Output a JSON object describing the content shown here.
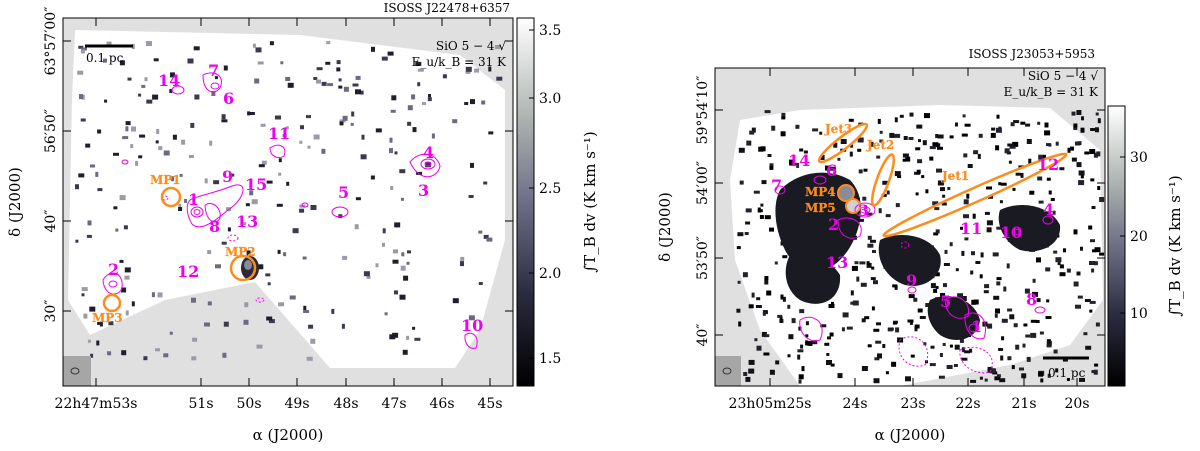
{
  "panels": [
    {
      "id": "left",
      "title": "ISOSS J22478+6357",
      "line_label": "SiO 5 − 4 √",
      "energy_label": "E_u/k_B = 31 K",
      "scalebar_label": "0.1 pc",
      "ra_ticks": [
        "22h47m53s",
        "51s",
        "50s",
        "49s",
        "48s",
        "47s",
        "46s",
        "45s"
      ],
      "dec_ticks": [
        "63°57′00″",
        "56′50″",
        "40″",
        "30″"
      ],
      "x_label": "α (J2000)",
      "y_label": "δ (J2000)",
      "colorbar_label": "∫T_B dv (K km s⁻¹)",
      "colorbar_ticks": [
        "3.5",
        "3.0",
        "2.5",
        "2.0",
        "1.5"
      ],
      "cores": [
        "1",
        "2",
        "3",
        "4",
        "5",
        "6",
        "7",
        "8",
        "9",
        "10",
        "11",
        "12",
        "13",
        "14",
        "15"
      ],
      "protostars": [
        "MP1",
        "MP2",
        "MP3"
      ]
    },
    {
      "id": "right",
      "title": "ISOSS J23053+5953",
      "line_label": "SiO 5 − 4 √",
      "energy_label": "E_u/k_B = 31 K",
      "scalebar_label": "0.1 pc",
      "ra_ticks": [
        "23h05m25s",
        "24s",
        "23s",
        "22s",
        "21s",
        "20s"
      ],
      "dec_ticks": [
        "59°54′10″",
        "54′00″",
        "53′50″",
        "40″"
      ],
      "x_label": "α (J2000)",
      "y_label": "δ (J2000)",
      "colorbar_label": "∫T_B dv (K km s⁻¹)",
      "colorbar_ticks": [
        "30",
        "20",
        "10"
      ],
      "cores": [
        "1",
        "2",
        "3",
        "4",
        "5",
        "6",
        "7",
        "8",
        "9",
        "10",
        "11",
        "12",
        "13",
        "14"
      ],
      "protostars": [
        "MP4",
        "MP5"
      ],
      "jets": [
        "Jet1",
        "Jet2",
        "Jet3"
      ]
    }
  ]
}
